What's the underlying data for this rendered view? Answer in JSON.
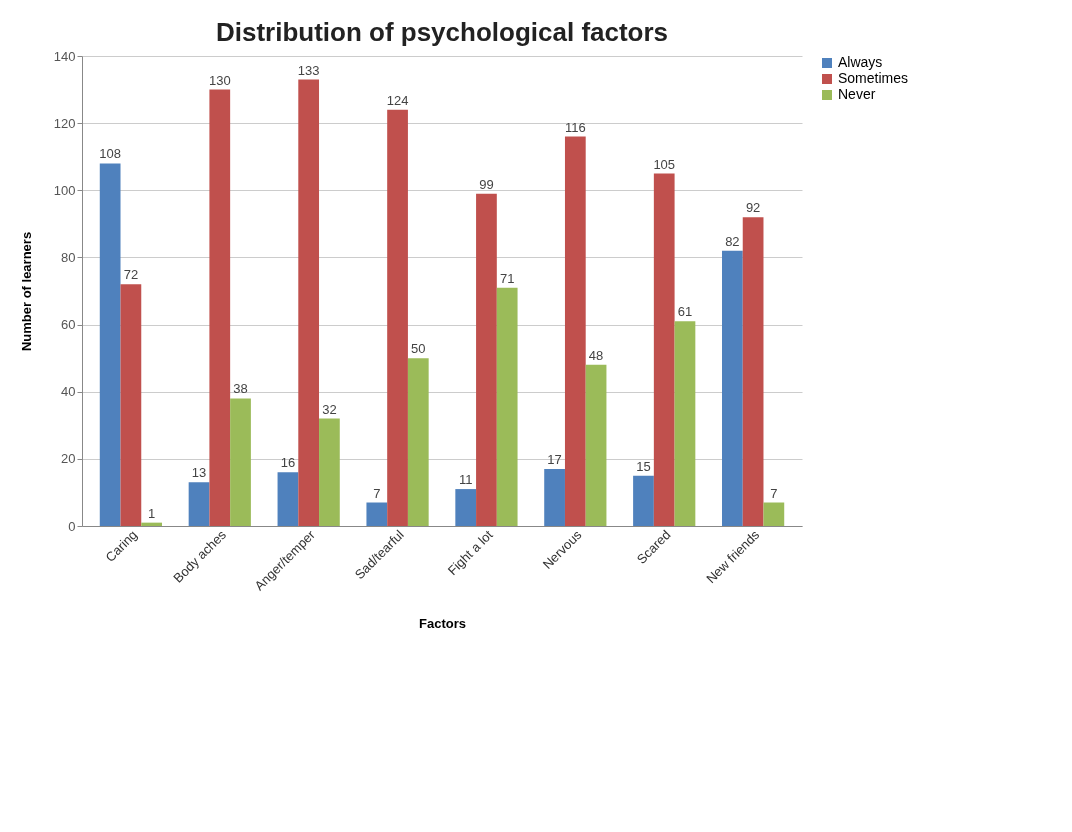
{
  "chart_data": {
    "type": "bar",
    "title": "Distribution of psychological factors",
    "xlabel": "Factors",
    "ylabel": "Number of learners",
    "categories": [
      "Caring",
      "Body aches",
      "Anger/temper",
      "Sad/tearful",
      "Fight a lot",
      "Nervous",
      "Scared",
      "New friends"
    ],
    "series": [
      {
        "name": "Always",
        "color": "#4f81bd",
        "values": [
          108,
          13,
          16,
          7,
          11,
          17,
          15,
          82
        ]
      },
      {
        "name": "Sometimes",
        "color": "#c0504d",
        "values": [
          72,
          130,
          133,
          124,
          99,
          116,
          105,
          92
        ]
      },
      {
        "name": "Never",
        "color": "#9bbb59",
        "values": [
          1,
          38,
          32,
          50,
          71,
          48,
          61,
          7
        ]
      }
    ],
    "ylim": [
      0,
      140
    ],
    "yticks": [
      0,
      20,
      40,
      60,
      80,
      100,
      120,
      140
    ],
    "grid": "y",
    "legend": "right",
    "data_labels": true
  }
}
